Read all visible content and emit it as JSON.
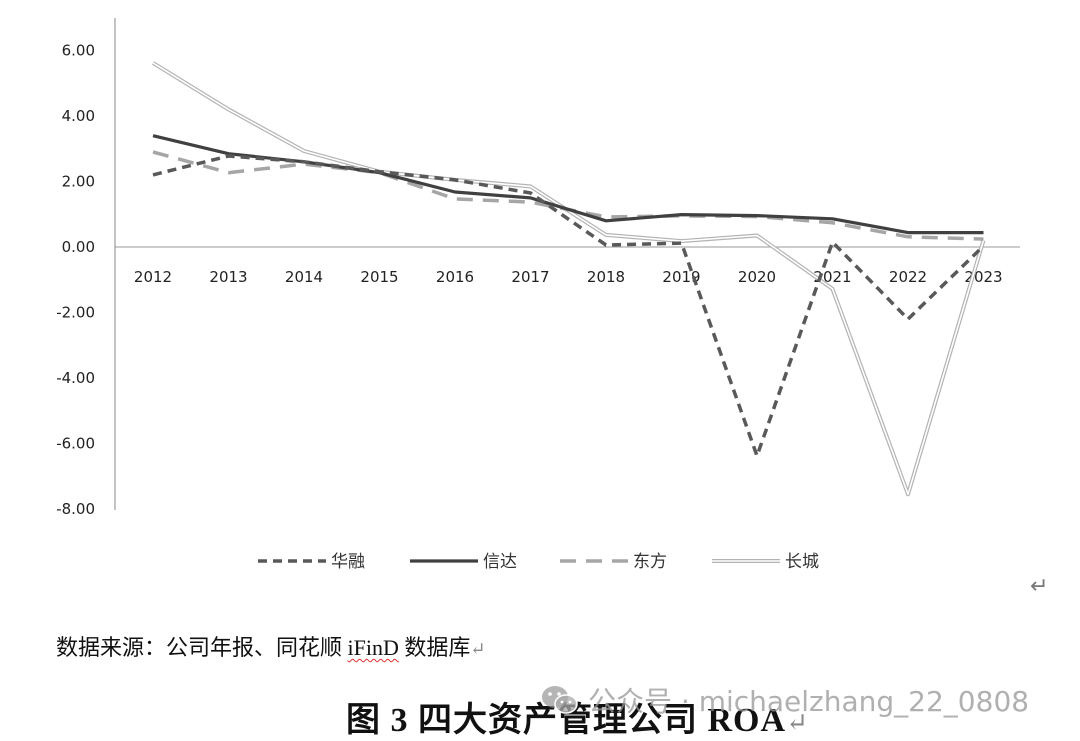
{
  "chart_data": {
    "type": "line",
    "title": "",
    "xlabel": "",
    "ylabel": "",
    "categories": [
      "2012",
      "2013",
      "2014",
      "2015",
      "2016",
      "2017",
      "2018",
      "2019",
      "2020",
      "2021",
      "2022",
      "2023"
    ],
    "ylim": [
      -8,
      6
    ],
    "yticks": [
      "6.00",
      "4.00",
      "2.00",
      "0.00",
      "-2.00",
      "-4.00",
      "-6.00",
      "-8.00"
    ],
    "grid": false,
    "legend_position": "bottom",
    "series": [
      {
        "name": "华融",
        "style": "dashed-dark",
        "color": "#595959",
        "values": [
          2.2,
          2.78,
          2.6,
          2.3,
          2.05,
          1.65,
          0.06,
          0.12,
          -6.38,
          0.15,
          -2.2,
          0.03
        ]
      },
      {
        "name": "信达",
        "style": "solid-dark",
        "color": "#404040",
        "values": [
          3.4,
          2.85,
          2.6,
          2.27,
          1.68,
          1.5,
          0.8,
          0.99,
          0.96,
          0.86,
          0.44,
          0.44
        ]
      },
      {
        "name": "东方",
        "style": "dashed-light",
        "color": "#a6a6a6",
        "values": [
          2.9,
          2.27,
          2.53,
          2.27,
          1.47,
          1.37,
          0.92,
          0.95,
          0.93,
          0.74,
          0.31,
          0.24
        ]
      },
      {
        "name": "长城",
        "style": "double-light",
        "color": "#bfbfbf",
        "values": [
          5.62,
          4.2,
          2.93,
          2.3,
          2.05,
          1.85,
          0.37,
          0.18,
          0.35,
          -1.28,
          -7.55,
          0.2
        ]
      }
    ]
  },
  "legend": {
    "items": [
      "华融",
      "信达",
      "东方",
      "长城"
    ]
  },
  "source_note": {
    "prefix": "数据来源：公司年报、同花顺 ",
    "ifind": "iFinD",
    "suffix": " 数据库",
    "return_mark": "↵"
  },
  "caption": {
    "text": "图 3  四大资产管理公司 ROA",
    "return_mark": "↵"
  },
  "watermark": {
    "text": "公众号 · michaelzhang_22_0808"
  },
  "paragraph_mark": "↵"
}
